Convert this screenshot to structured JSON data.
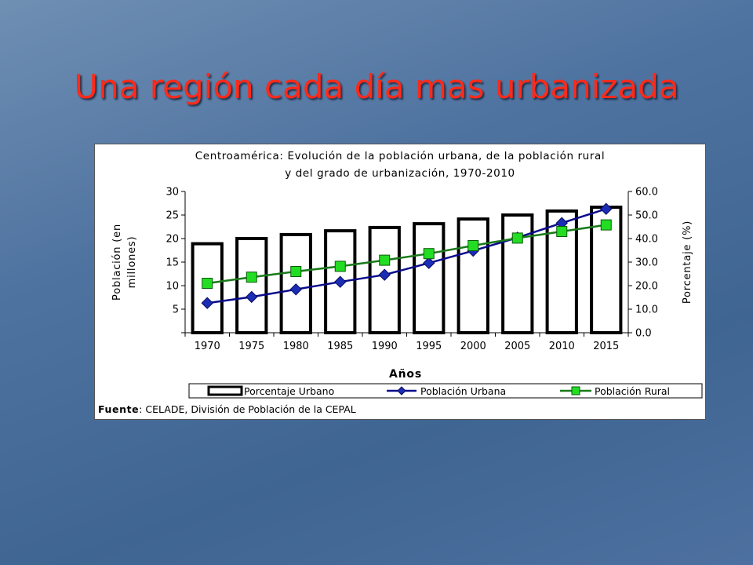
{
  "slide": {
    "title": "Una región cada día mas urbanizada"
  },
  "chart_data": {
    "type": "bar",
    "title_lines": [
      "Centroamérica: Evolución de la población urbana, de la población rural",
      "y del grado de urbanización, 1970-2010"
    ],
    "xlabel": "Años",
    "ylabel_left_lines": [
      "Población (en",
      "millones)"
    ],
    "ylabel_right": "Porcentaje (%)",
    "categories": [
      "1970",
      "1975",
      "1980",
      "1985",
      "1990",
      "1995",
      "2000",
      "2005",
      "2010",
      "2015"
    ],
    "y_left": {
      "lim": [
        0,
        30
      ],
      "ticks": [
        "",
        "5",
        "10",
        "15",
        "20",
        "25",
        "30"
      ]
    },
    "y_right": {
      "lim": [
        0,
        60
      ],
      "ticks": [
        "0.0",
        "10.0",
        "20.0",
        "30.0",
        "40.0",
        "50.0",
        "60.0"
      ]
    },
    "series": [
      {
        "name": "Porcentaje Urbano",
        "type": "bar",
        "axis": "right",
        "color": "#000000",
        "values": [
          37.8,
          40.0,
          41.7,
          43.3,
          44.7,
          46.3,
          48.3,
          50.0,
          51.7,
          53.3
        ]
      },
      {
        "name": "Población Urbana",
        "type": "line",
        "axis": "left",
        "color": "#0a0a8c",
        "marker": "diamond",
        "values": [
          6.3,
          7.6,
          9.2,
          10.8,
          12.3,
          14.8,
          17.4,
          20.2,
          23.3,
          26.3
        ]
      },
      {
        "name": "Población Rural",
        "type": "line",
        "axis": "left",
        "color": "#1a7a1a",
        "marker": "square",
        "marker_color": "#22dd22",
        "values": [
          10.5,
          11.8,
          13.0,
          14.1,
          15.4,
          16.8,
          18.5,
          20.1,
          21.5,
          22.9
        ]
      }
    ],
    "source_label": "Fuente",
    "source_text": ": CELADE, División de Población de la CEPAL",
    "grid": false,
    "legend_position": "bottom"
  }
}
